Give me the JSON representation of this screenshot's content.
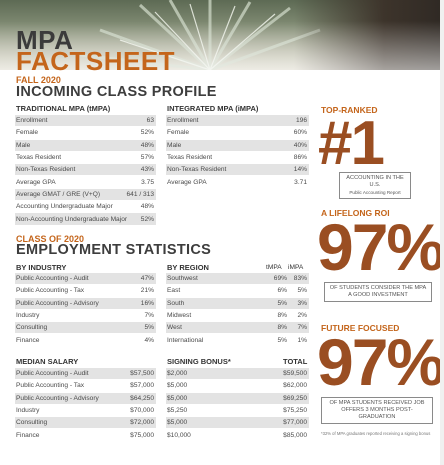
{
  "header": {
    "title_line1": "MPA",
    "title_line2": "FACTSHEET"
  },
  "profile": {
    "kicker": "FALL 2020",
    "heading": "INCOMING CLASS PROFILE",
    "traditional": {
      "title": "TRADITIONAL MPA (tMPA)",
      "rows": [
        {
          "label": "Enrollment",
          "value": "63"
        },
        {
          "label": "Female",
          "value": "52%"
        },
        {
          "label": "Male",
          "value": "48%"
        },
        {
          "label": "Texas Resident",
          "value": "57%"
        },
        {
          "label": "Non-Texas Resident",
          "value": "43%"
        },
        {
          "label": "Average GPA",
          "value": "3.75"
        },
        {
          "label": "Average GMAT / GRE (V+Q)",
          "value": "641 / 313"
        },
        {
          "label": "Accounting Undergraduate Major",
          "value": "48%"
        },
        {
          "label": "Non-Accounting Undergraduate Major",
          "value": "52%"
        }
      ]
    },
    "integrated": {
      "title": "INTEGRATED MPA (iMPA)",
      "rows": [
        {
          "label": "Enrollment",
          "value": "196"
        },
        {
          "label": "Female",
          "value": "60%"
        },
        {
          "label": "Male",
          "value": "40%"
        },
        {
          "label": "Texas Resident",
          "value": "86%"
        },
        {
          "label": "Non-Texas Resident",
          "value": "14%"
        },
        {
          "label": "Average GPA",
          "value": "3.71"
        }
      ]
    }
  },
  "employment": {
    "kicker": "CLASS OF 2020",
    "heading": "EMPLOYMENT STATISTICS",
    "by_industry": {
      "title": "BY INDUSTRY",
      "rows": [
        {
          "label": "Public Accounting - Audit",
          "value": "47%"
        },
        {
          "label": "Public Accounting - Tax",
          "value": "21%"
        },
        {
          "label": "Public Accounting - Advisory",
          "value": "16%"
        },
        {
          "label": "Industry",
          "value": "7%"
        },
        {
          "label": "Consulting",
          "value": "5%"
        },
        {
          "label": "Finance",
          "value": "4%"
        }
      ]
    },
    "by_region": {
      "title": "BY REGION",
      "col1": "tMPA",
      "col2": "iMPA",
      "rows": [
        {
          "label": "Southwest",
          "t": "69%",
          "i": "83%"
        },
        {
          "label": "East",
          "t": "6%",
          "i": "5%"
        },
        {
          "label": "South",
          "t": "5%",
          "i": "3%"
        },
        {
          "label": "Midwest",
          "t": "8%",
          "i": "2%"
        },
        {
          "label": "West",
          "t": "8%",
          "i": "7%"
        },
        {
          "label": "International",
          "t": "5%",
          "i": "1%"
        }
      ]
    },
    "median_salary": {
      "title": "MEDIAN SALARY",
      "rows": [
        {
          "label": "Public Accounting - Audit",
          "value": "$57,500"
        },
        {
          "label": "Public Accounting - Tax",
          "value": "$57,000"
        },
        {
          "label": "Public Accounting - Advisory",
          "value": "$64,250"
        },
        {
          "label": "Industry",
          "value": "$70,000"
        },
        {
          "label": "Consulting",
          "value": "$72,000"
        },
        {
          "label": "Finance",
          "value": "$75,000"
        }
      ]
    },
    "bonus": {
      "title": "SIGNING BONUS*",
      "total_label": "TOTAL",
      "rows": [
        {
          "bonus": "$2,000",
          "total": "$59,500"
        },
        {
          "bonus": "$5,000",
          "total": "$62,000"
        },
        {
          "bonus": "$5,000",
          "total": "$69,250"
        },
        {
          "bonus": "$5,250",
          "total": "$75,250"
        },
        {
          "bonus": "$5,000",
          "total": "$77,000"
        },
        {
          "bonus": "$10,000",
          "total": "$85,000"
        }
      ]
    }
  },
  "sidebar": {
    "top_ranked": {
      "heading": "TOP-RANKED",
      "number": "#1",
      "note_line1": "ACCOUNTING IN THE U.S.",
      "note_line2": "Public Accounting Report"
    },
    "roi": {
      "heading": "A LIFELONG ROI",
      "number": "97%",
      "note": "OF STUDENTS CONSIDER THE MPA A GOOD INVESTMENT"
    },
    "future": {
      "heading": "FUTURE FOCUSED",
      "number": "97%",
      "note": "OF MPA STUDENTS RECEIVED JOB OFFERS 3 MONTHS POST-GRADUATION"
    },
    "footnote": "*32% of MPA graduates reported receiving a signing bonus"
  },
  "colors": {
    "accent": "#c4651b",
    "bignum": "#9a4e22",
    "row_shade": "#e3e3e3"
  }
}
